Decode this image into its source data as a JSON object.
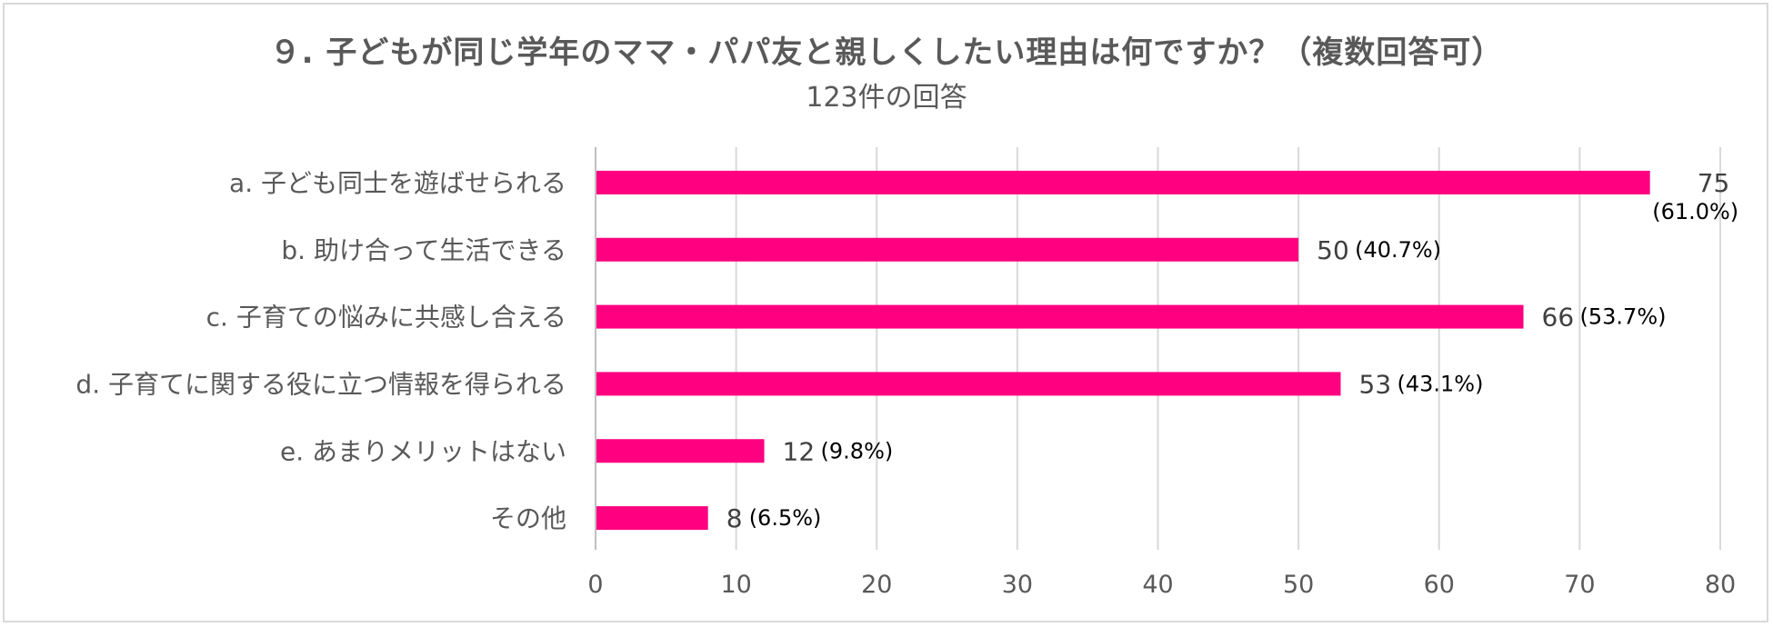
{
  "chart_data": {
    "type": "bar",
    "orientation": "horizontal",
    "title": "９. 子どもが同じ学年のママ・パパ友と親しくしたい理由は何ですか？（複数回答可）",
    "subtitle": "123件の回答",
    "categories": [
      "a. 子ども同士を遊ばせられる",
      "b. 助け合って生活できる",
      "c. 子育ての悩みに共感し合える",
      "d. 子育てに関する役に立つ情報を得られる",
      "e. あまりメリットはない",
      "その他"
    ],
    "values": [
      75,
      50,
      66,
      53,
      12,
      8
    ],
    "percent_labels": [
      "(61.0%)",
      "(40.7%)",
      "(53.7%)",
      "(43.1%)",
      "(9.8%)",
      "(6.5%)"
    ],
    "xlim": [
      0,
      80
    ],
    "xticks": [
      "0",
      "10",
      "20",
      "30",
      "40",
      "50",
      "60",
      "70",
      "80"
    ],
    "grid": true,
    "legend": "none",
    "bar_color": "#ff0080"
  }
}
